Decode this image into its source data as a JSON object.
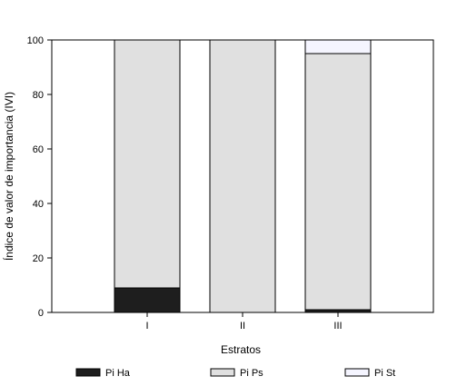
{
  "chart_data": {
    "type": "bar",
    "stacked": true,
    "xlabel": "Estratos",
    "ylabel": "Índice de valor de importancia (IVI)",
    "ylim": [
      0,
      100
    ],
    "yticks": [
      0,
      20,
      40,
      60,
      80,
      100
    ],
    "categories": [
      "I",
      "II",
      "III"
    ],
    "series": [
      {
        "name": "Pi Ha",
        "values": [
          9,
          0,
          1
        ],
        "color": "#1e1e1e"
      },
      {
        "name": "Pi Ps",
        "values": [
          91,
          100,
          94
        ],
        "color": "#e0e0e0"
      },
      {
        "name": "Pi St",
        "values": [
          0,
          0,
          5
        ],
        "color": "#f5f5ff"
      }
    ],
    "legend_position": "bottom",
    "grid": false
  }
}
